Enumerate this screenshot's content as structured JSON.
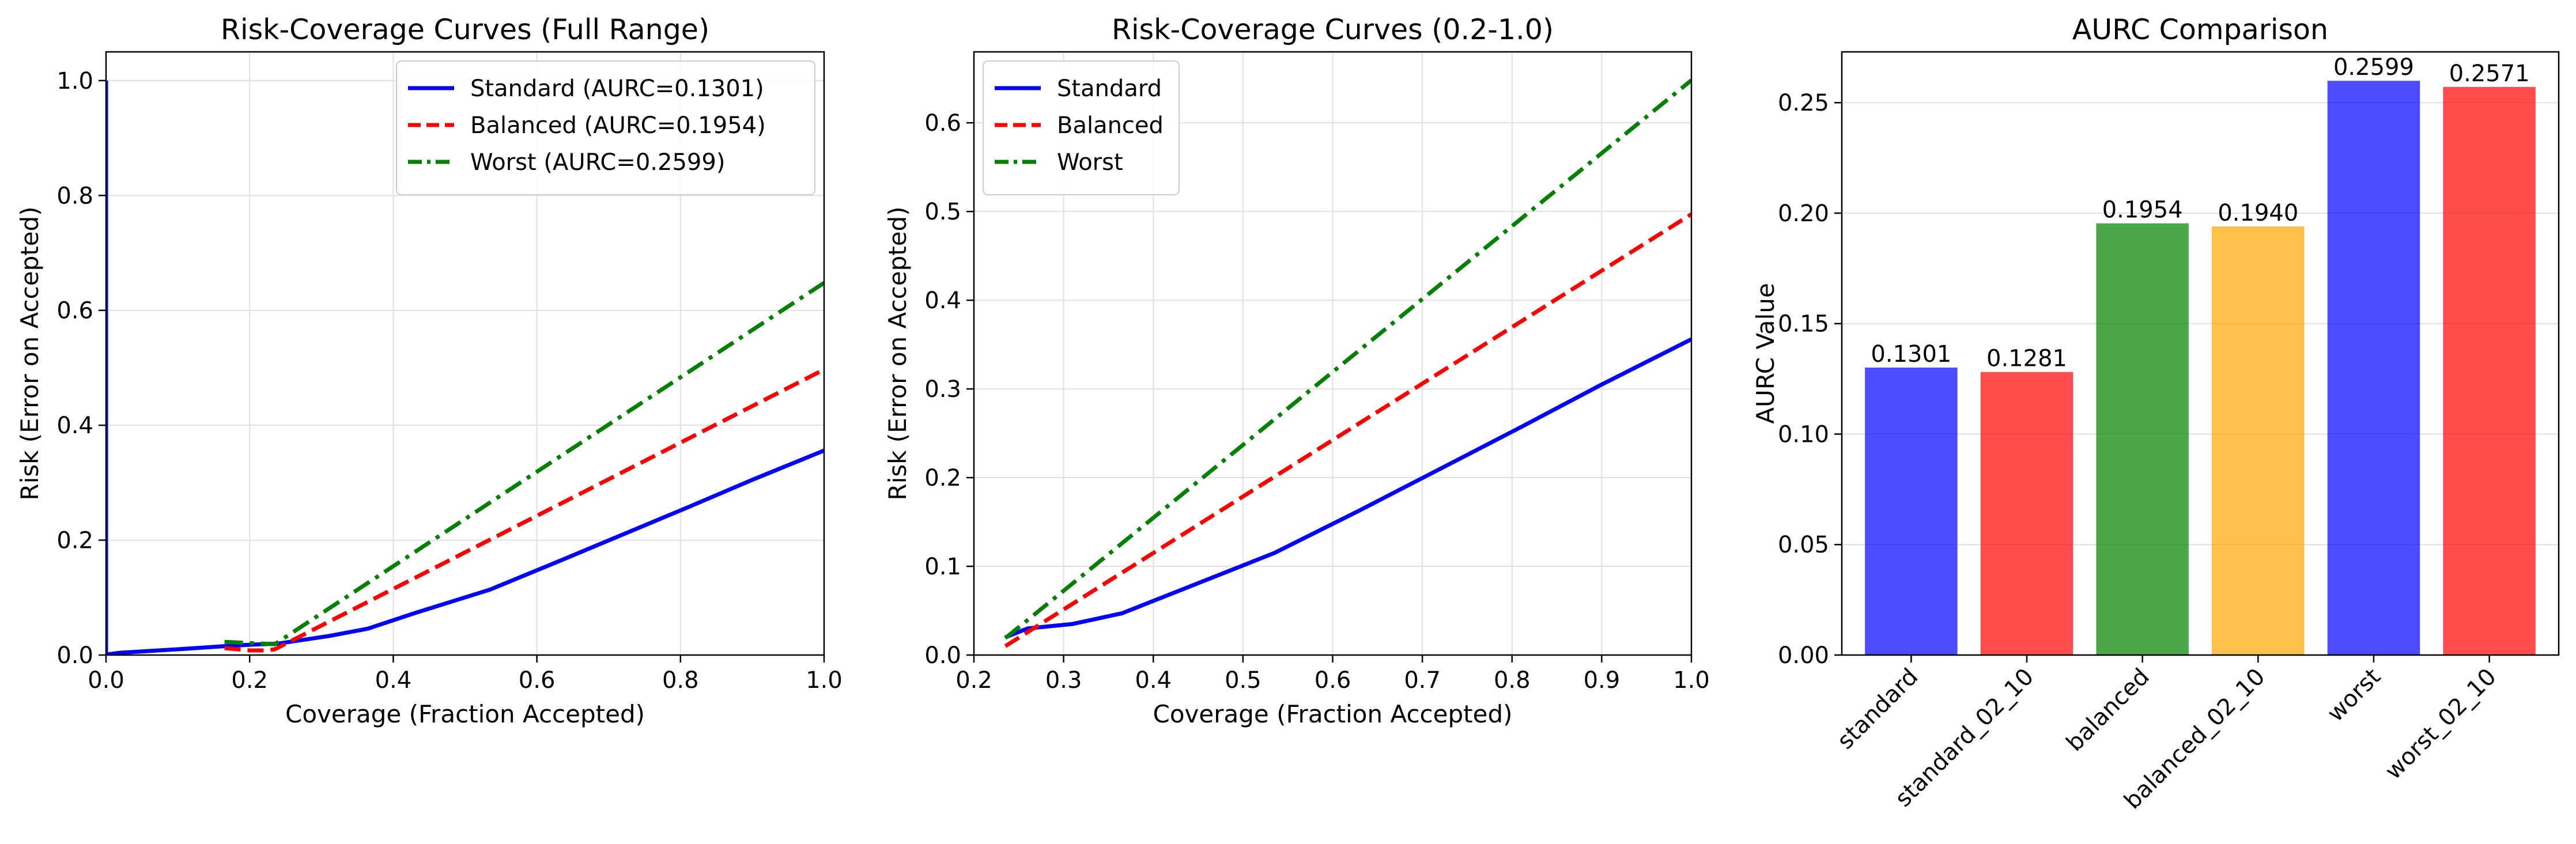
{
  "colors": {
    "blue": "#0000ff",
    "red": "#ff0000",
    "green": "#008000",
    "orange": "#ffa500",
    "grid": "#e0e0e0"
  },
  "chart_data": [
    {
      "type": "line",
      "title": "Risk-Coverage Curves (Full Range)",
      "xlabel": "Coverage (Fraction Accepted)",
      "ylabel": "Risk (Error on Accepted)",
      "xlim": [
        0.0,
        1.0
      ],
      "ylim": [
        0.0,
        1.05
      ],
      "xticks": [
        0.0,
        0.2,
        0.4,
        0.6,
        0.8,
        1.0
      ],
      "xtick_labels": [
        "0.0",
        "0.2",
        "0.4",
        "0.6",
        "0.8",
        "1.0"
      ],
      "yticks": [
        0.0,
        0.2,
        0.4,
        0.6,
        0.8,
        1.0
      ],
      "ytick_labels": [
        "0.0",
        "0.2",
        "0.4",
        "0.6",
        "0.8",
        "1.0"
      ],
      "grid": true,
      "legend_position": "top-right",
      "series": [
        {
          "name": "Standard (AURC=0.1301)",
          "color": "#0000ff",
          "style": "solid",
          "x": [
            0.0,
            0.0,
            0.001,
            0.02,
            0.1,
            0.16,
            0.2,
            0.24,
            0.31,
            0.365,
            0.43,
            0.535,
            0.63,
            0.72,
            0.81,
            0.9,
            1.0
          ],
          "y": [
            1.0,
            0.0,
            0.001,
            0.004,
            0.01,
            0.015,
            0.018,
            0.02,
            0.033,
            0.046,
            0.073,
            0.114,
            0.163,
            0.21,
            0.257,
            0.305,
            0.356
          ]
        },
        {
          "name": "Balanced (AURC=0.1954)",
          "color": "#ff0000",
          "style": "dashed",
          "x": [
            0.165,
            0.2,
            0.225,
            0.235,
            1.0
          ],
          "y": [
            0.012,
            0.008,
            0.008,
            0.01,
            0.497
          ]
        },
        {
          "name": "Worst (AURC=0.2599)",
          "color": "#008000",
          "style": "dashdot",
          "x": [
            0.165,
            0.2,
            0.235,
            1.0
          ],
          "y": [
            0.023,
            0.021,
            0.019,
            0.648
          ]
        }
      ]
    },
    {
      "type": "line",
      "title": "Risk-Coverage Curves (0.2-1.0)",
      "xlabel": "Coverage (Fraction Accepted)",
      "ylabel": "Risk (Error on Accepted)",
      "xlim": [
        0.2,
        1.0
      ],
      "ylim": [
        0.0,
        0.68
      ],
      "xticks": [
        0.2,
        0.3,
        0.4,
        0.5,
        0.6,
        0.7,
        0.8,
        0.9,
        1.0
      ],
      "xtick_labels": [
        "0.2",
        "0.3",
        "0.4",
        "0.5",
        "0.6",
        "0.7",
        "0.8",
        "0.9",
        "1.0"
      ],
      "yticks": [
        0.0,
        0.1,
        0.2,
        0.3,
        0.4,
        0.5,
        0.6
      ],
      "ytick_labels": [
        "0.0",
        "0.1",
        "0.2",
        "0.3",
        "0.4",
        "0.5",
        "0.6"
      ],
      "grid": true,
      "legend_position": "top-left",
      "series": [
        {
          "name": "Standard",
          "color": "#0000ff",
          "style": "solid",
          "x": [
            0.235,
            0.26,
            0.31,
            0.365,
            0.43,
            0.535,
            0.63,
            0.72,
            0.81,
            0.9,
            1.0
          ],
          "y": [
            0.02,
            0.03,
            0.035,
            0.047,
            0.073,
            0.115,
            0.163,
            0.21,
            0.257,
            0.305,
            0.356
          ]
        },
        {
          "name": "Balanced",
          "color": "#ff0000",
          "style": "dashed",
          "x": [
            0.235,
            1.0
          ],
          "y": [
            0.01,
            0.497
          ]
        },
        {
          "name": "Worst",
          "color": "#008000",
          "style": "dashdot",
          "x": [
            0.235,
            1.0
          ],
          "y": [
            0.019,
            0.648
          ]
        }
      ]
    },
    {
      "type": "bar",
      "title": "AURC Comparison",
      "xlabel": "",
      "ylabel": "AURC Value",
      "ylim": [
        0.0,
        0.273
      ],
      "yticks": [
        0.0,
        0.05,
        0.1,
        0.15,
        0.2,
        0.25
      ],
      "ytick_labels": [
        "0.00",
        "0.05",
        "0.10",
        "0.15",
        "0.20",
        "0.25"
      ],
      "grid": true,
      "categories": [
        "standard",
        "standard_02_10",
        "balanced",
        "balanced_02_10",
        "worst",
        "worst_02_10"
      ],
      "values": [
        0.1301,
        0.1281,
        0.1954,
        0.194,
        0.2599,
        0.2571
      ],
      "value_labels": [
        "0.1301",
        "0.1281",
        "0.1954",
        "0.1940",
        "0.2599",
        "0.2571"
      ],
      "bar_colors": [
        "#0000ff",
        "#ff0000",
        "#008000",
        "#ffa500",
        "#0000ff",
        "#ff0000"
      ],
      "bar_alpha": 0.7
    }
  ]
}
